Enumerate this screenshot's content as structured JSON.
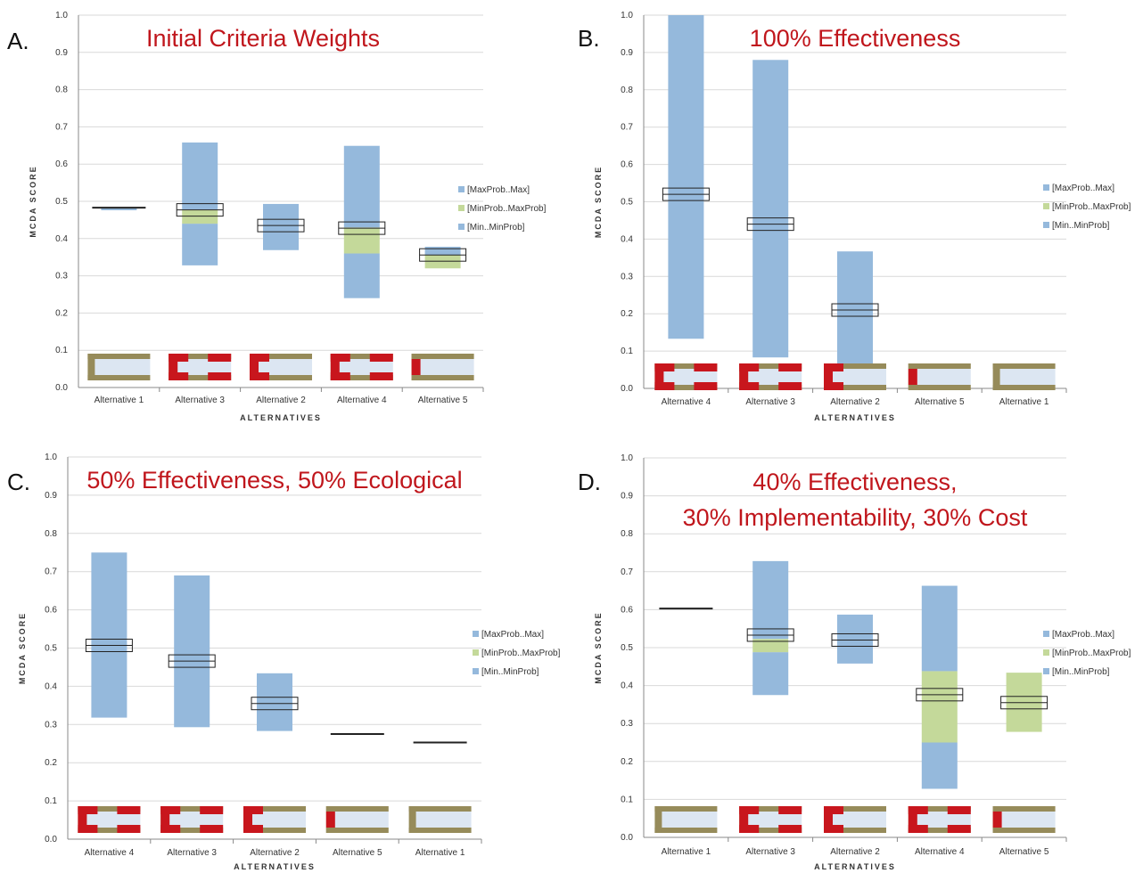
{
  "colors": {
    "blue": "#95b9dc",
    "green": "#c4d99a",
    "red": "#c8161d",
    "olive": "#968b5a",
    "fill": "#dce6f2",
    "title": "#c0161c"
  },
  "legend": [
    "[MaxProb..Max]",
    "[MinProb..MaxProb]",
    "[Min..MinProb]"
  ],
  "chart_data": [
    {
      "type": "bar",
      "panel": "A.",
      "title": [
        "Initial Criteria Weights"
      ],
      "ylabel": "MCDA SCORE",
      "xlabel": "ALTERNATIVES",
      "ylim": [
        0,
        1.0
      ],
      "yticks": [
        "0.0",
        "0.1",
        "0.2",
        "0.3",
        "0.4",
        "0.5",
        "0.6",
        "0.7",
        "0.8",
        "0.9",
        "1.0"
      ],
      "categories": [
        "Alternative 1",
        "Alternative 3",
        "Alternative 2",
        "Alternative 4",
        "Alternative 5"
      ],
      "series": [
        {
          "name": "[MaxProb..Max]",
          "values": [
            [
              0.481,
              0.481
            ],
            [
              0.478,
              0.658
            ],
            [
              0.435,
              0.493
            ],
            [
              0.43,
              0.649
            ],
            [
              0.356,
              0.378
            ]
          ]
        },
        {
          "name": "[MinProb..MaxProb]",
          "values": [
            [
              0.481,
              0.481
            ],
            [
              0.44,
              0.478
            ],
            [
              0.435,
              0.435
            ],
            [
              0.36,
              0.43
            ],
            [
              0.32,
              0.356
            ]
          ]
        },
        {
          "name": "[Min..MinProb]",
          "values": [
            [
              0.476,
              0.481
            ],
            [
              0.328,
              0.44
            ],
            [
              0.369,
              0.435
            ],
            [
              0.24,
              0.36
            ],
            [
              0.32,
              0.32
            ]
          ]
        }
      ],
      "mean": [
        0.483,
        0.477,
        0.435,
        0.428,
        0.356
      ],
      "icons": [
        "none",
        "both",
        "left",
        "both",
        "leftsmall"
      ]
    },
    {
      "type": "bar",
      "panel": "B.",
      "title": [
        "100% Effectiveness"
      ],
      "ylabel": "MCDA SCORE",
      "xlabel": "ALTERNATIVES",
      "ylim": [
        0,
        1.0
      ],
      "yticks": [
        "0.0",
        "0.1",
        "0.2",
        "0.3",
        "0.4",
        "0.5",
        "0.6",
        "0.7",
        "0.8",
        "0.9",
        "1.0"
      ],
      "categories": [
        "Alternative 4",
        "Alternative 3",
        "Alternative 2",
        "Alternative 5",
        "Alternative 1"
      ],
      "series": [
        {
          "name": "[MaxProb..Max]",
          "values": [
            [
              0.52,
              1.0
            ],
            [
              0.44,
              0.88
            ],
            [
              0.21,
              0.367
            ],
            [
              0.05,
              0.052
            ],
            [
              0.005,
              0.007
            ]
          ]
        },
        {
          "name": "[MinProb..MaxProb]",
          "values": [
            [
              0.52,
              0.52
            ],
            [
              0.44,
              0.44
            ],
            [
              0.21,
              0.21
            ],
            [
              0.05,
              0.05
            ],
            [
              0.005,
              0.005
            ]
          ]
        },
        {
          "name": "[Min..MinProb]",
          "values": [
            [
              0.133,
              0.52
            ],
            [
              0.083,
              0.44
            ],
            [
              0.06,
              0.21
            ],
            [
              0.048,
              0.05
            ],
            [
              0.003,
              0.005
            ]
          ]
        }
      ],
      "mean": [
        0.52,
        0.44,
        0.21,
        0.05,
        0.005
      ],
      "icons": [
        "both",
        "both",
        "left",
        "leftsmall",
        "none"
      ]
    },
    {
      "type": "bar",
      "panel": "C.",
      "title": [
        "50% Effectiveness, 50% Ecological"
      ],
      "ylabel": "MCDA SCORE",
      "xlabel": "ALTERNATIVES",
      "ylim": [
        0,
        1.0
      ],
      "yticks": [
        "0.0",
        "0.1",
        "0.2",
        "0.3",
        "0.4",
        "0.5",
        "0.6",
        "0.7",
        "0.8",
        "0.9",
        "1.0"
      ],
      "categories": [
        "Alternative 4",
        "Alternative 3",
        "Alternative 2",
        "Alternative 5",
        "Alternative 1"
      ],
      "series": [
        {
          "name": "[MaxProb..Max]",
          "values": [
            [
              0.507,
              0.75
            ],
            [
              0.466,
              0.69
            ],
            [
              0.355,
              0.434
            ],
            [
              0.275,
              0.275
            ],
            [
              0.253,
              0.253
            ]
          ]
        },
        {
          "name": "[MinProb..MaxProb]",
          "values": [
            [
              0.507,
              0.507
            ],
            [
              0.466,
              0.466
            ],
            [
              0.355,
              0.355
            ],
            [
              0.275,
              0.275
            ],
            [
              0.253,
              0.253
            ]
          ]
        },
        {
          "name": "[Min..MinProb]",
          "values": [
            [
              0.318,
              0.507
            ],
            [
              0.293,
              0.466
            ],
            [
              0.283,
              0.355
            ],
            [
              0.275,
              0.275
            ],
            [
              0.253,
              0.253
            ]
          ]
        }
      ],
      "mean": [
        0.507,
        0.466,
        0.355,
        0.275,
        0.253
      ],
      "icons": [
        "both",
        "both",
        "left",
        "leftsmall",
        "none"
      ]
    },
    {
      "type": "bar",
      "panel": "D.",
      "title": [
        "40% Effectiveness,",
        "30% Implementability, 30% Cost"
      ],
      "ylabel": "MCDA SCORE",
      "xlabel": "ALTERNATIVES",
      "ylim": [
        0,
        1.0
      ],
      "yticks": [
        "0.0",
        "0.1",
        "0.2",
        "0.3",
        "0.4",
        "0.5",
        "0.6",
        "0.7",
        "0.8",
        "0.9",
        "1.0"
      ],
      "categories": [
        "Alternative 1",
        "Alternative 3",
        "Alternative 2",
        "Alternative 4",
        "Alternative 5"
      ],
      "series": [
        {
          "name": "[MaxProb..Max]",
          "values": [
            [
              0.603,
              0.603
            ],
            [
              0.523,
              0.728
            ],
            [
              0.52,
              0.587
            ],
            [
              0.438,
              0.663
            ],
            [
              0.355,
              0.355
            ]
          ]
        },
        {
          "name": "[MinProb..MaxProb]",
          "values": [
            [
              0.603,
              0.603
            ],
            [
              0.488,
              0.523
            ],
            [
              0.52,
              0.52
            ],
            [
              0.25,
              0.438
            ],
            [
              0.278,
              0.434
            ]
          ]
        },
        {
          "name": "[Min..MinProb]",
          "values": [
            [
              0.603,
              0.603
            ],
            [
              0.375,
              0.488
            ],
            [
              0.458,
              0.52
            ],
            [
              0.128,
              0.25
            ],
            [
              0.278,
              0.278
            ]
          ]
        }
      ],
      "mean": [
        0.603,
        0.533,
        0.52,
        0.376,
        0.355
      ],
      "icons": [
        "none",
        "both",
        "left",
        "both",
        "leftsmall"
      ]
    }
  ]
}
